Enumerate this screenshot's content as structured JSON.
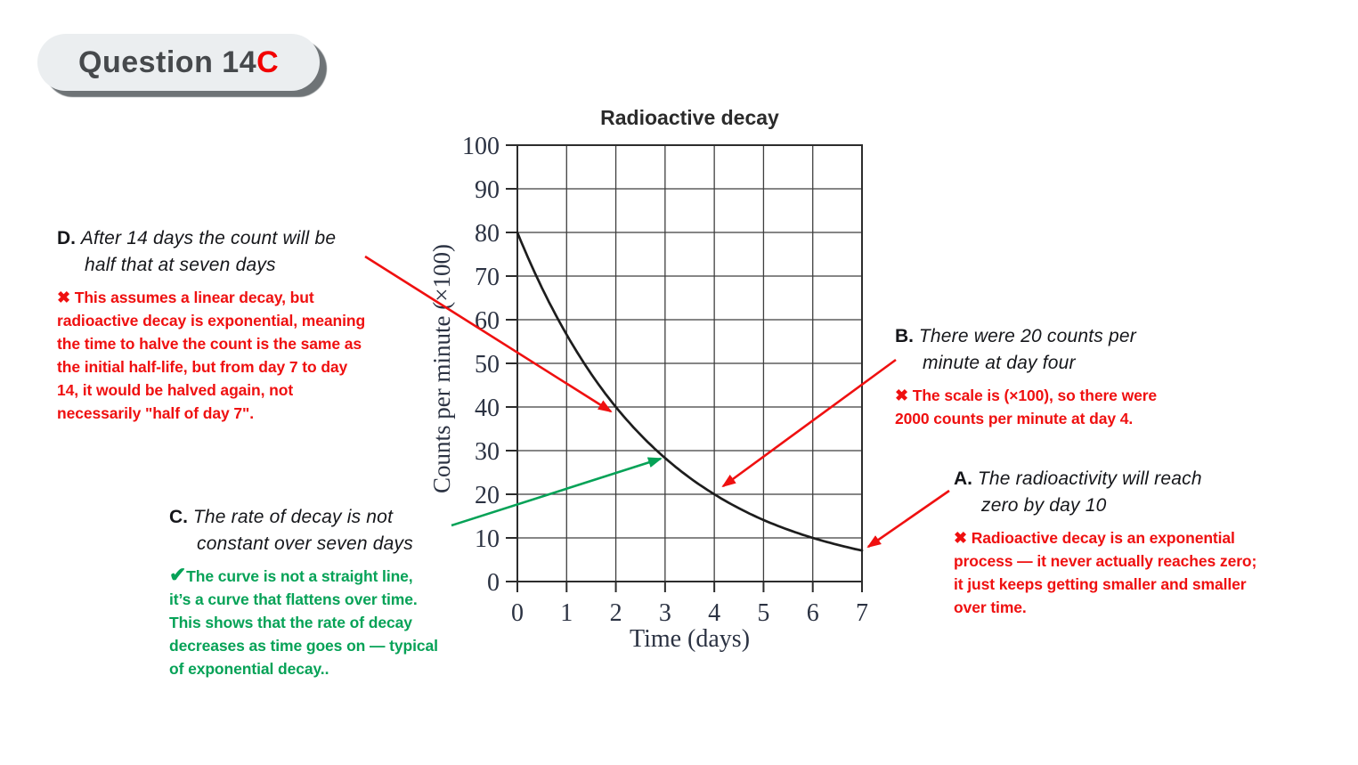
{
  "badge": {
    "label": "Question 14",
    "accent": "C"
  },
  "colors": {
    "wrong_red": "#ef1010",
    "correct_green": "#06a257",
    "badge_bg": "#ebeef0",
    "badge_shadow": "#6e7376",
    "badge_text": "#46494c",
    "curve_black": "#1d1d1d"
  },
  "chart_data": {
    "type": "line",
    "title": "Radioactive decay",
    "xlabel": "Time (days)",
    "ylabel": "Counts per minute (×100)",
    "xlim": [
      0,
      7
    ],
    "ylim": [
      0,
      100
    ],
    "x_ticks": [
      0,
      1,
      2,
      3,
      4,
      5,
      6,
      7
    ],
    "y_ticks": [
      0,
      10,
      20,
      30,
      40,
      50,
      60,
      70,
      80,
      90,
      100
    ],
    "grid": true,
    "legend": "none",
    "series": [
      {
        "name": "counts per minute (×100)",
        "color": "#1d1d1d",
        "interpolation": "exponential",
        "half_life_days": 2,
        "points": [
          [
            0,
            80
          ],
          [
            1,
            56.6
          ],
          [
            2,
            40
          ],
          [
            3,
            28.3
          ],
          [
            4,
            20
          ],
          [
            5,
            14.1
          ],
          [
            6,
            10
          ],
          [
            7,
            7.1
          ]
        ]
      }
    ]
  },
  "annotations": {
    "d": {
      "label": "D.",
      "statement": "After 14 days the count will be\nhalf that at seven days",
      "mark": "✖",
      "explanation": " This assumes a linear decay, but\nradioactive decay is exponential, meaning\nthe time to halve the count is the same as\nthe initial half-life, but from day 7 to day\n14, it would be halved again, not\nnecessarily \"half of day 7\"."
    },
    "b": {
      "label": "B.",
      "statement": "There were 20 counts per\nminute at day four",
      "mark": "✖",
      "explanation": " The scale is (×100), so there were\n2000 counts per minute at day 4."
    },
    "c": {
      "label": "C.",
      "statement": "The rate of decay is not\nconstant over seven days",
      "mark": "✔",
      "explanation": "The curve is not a straight line,\nit’s a curve that flattens over time.\nThis shows that the rate of decay\ndecreases as time goes on — typical\nof exponential decay.."
    },
    "a": {
      "label": "A.",
      "statement": "The radioactivity will reach\nzero by day 10",
      "mark": "✖",
      "explanation": " Radioactive decay is an exponential\nprocess — it never actually reaches zero;\nit just keeps getting smaller and smaller\nover time."
    }
  },
  "arrows": [
    {
      "id": "arrow-d-to-curve",
      "color": "#ef1010",
      "from": [
        410,
        288
      ],
      "to": [
        686,
        462
      ]
    },
    {
      "id": "arrow-b-to-curve",
      "color": "#ef1010",
      "from": [
        1006,
        404
      ],
      "to": [
        812,
        546
      ]
    },
    {
      "id": "arrow-a-to-curve",
      "color": "#ef1010",
      "from": [
        1066,
        551
      ],
      "to": [
        975,
        614
      ]
    },
    {
      "id": "arrow-c-to-curve",
      "color": "#06a257",
      "from": [
        507,
        590
      ],
      "to": [
        742,
        515
      ]
    }
  ]
}
